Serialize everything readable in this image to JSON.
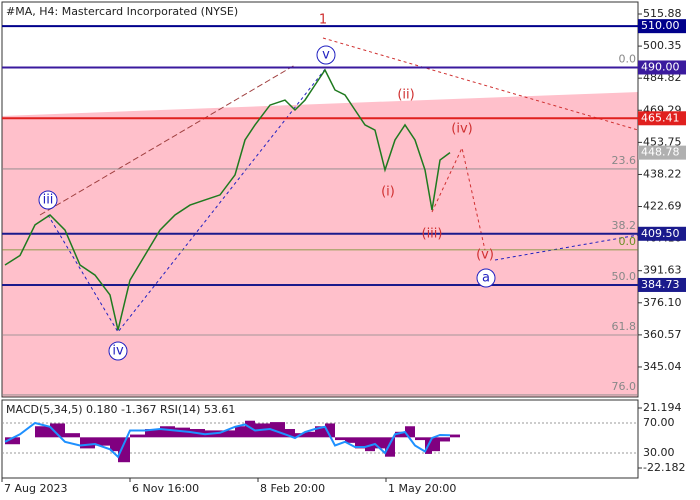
{
  "chart_data": [
    {
      "type": "line",
      "title": "#MA, H4:  Mastercard Incorporated (NYSE)",
      "xlim": [
        0,
        318
      ],
      "xticks": [
        {
          "value": 0,
          "label": "7 Aug 2023"
        },
        {
          "value": 64,
          "label": "6 Nov 16:00"
        },
        {
          "value": 128,
          "label": "8 Feb 20:00"
        },
        {
          "value": 192,
          "label": "1 May 20:00"
        }
      ],
      "x": [
        1.5,
        9,
        16.5,
        24,
        31.5,
        39,
        46.5,
        54,
        58,
        64,
        71.5,
        79,
        86.5,
        94,
        101.5,
        109,
        116.5,
        121.5,
        126.5,
        134,
        141.5,
        146.5,
        151.5,
        156.5,
        161.5,
        166.5,
        171.5,
        176.5,
        181.5,
        186.5,
        191.5,
        196.5,
        201.5,
        206.5,
        211.5,
        215,
        219,
        224
      ],
      "values": [
        394.4,
        399,
        413.8,
        418.6,
        411.3,
        394.4,
        389.5,
        379.9,
        362.9,
        387.1,
        399.2,
        411.3,
        418.6,
        423.4,
        425.9,
        428.3,
        438,
        454.9,
        462.2,
        471.8,
        474.2,
        469.4,
        474.2,
        481.5,
        488.8,
        479.1,
        476.7,
        469.4,
        462.2,
        459.7,
        440.4,
        454.9,
        462.2,
        454.9,
        440.4,
        421,
        445.2,
        448.78
      ],
      "color": "#1f7a1f",
      "ylim": [
        330.5,
        522.66
      ],
      "yticks": [
        515.88,
        500.35,
        484.82,
        469.29,
        453.75,
        438.22,
        422.69,
        407.16,
        391.63,
        {
          "value": 376.1,
          "label": "376.10"
        },
        360.57,
        345.04
      ],
      "levels": [
        {
          "value": 510,
          "label": "510.00",
          "color": "#00008b"
        },
        {
          "value": 490,
          "label": "490.00",
          "color": "#3a1a9e"
        },
        {
          "value": 465.41,
          "label": "465.41",
          "color": "#e0201e"
        },
        {
          "value": 409.5,
          "label": "409.50",
          "color": "#1a1a8c"
        },
        {
          "value": 384.73,
          "label": "384.73",
          "color": "#1a1a8c"
        }
      ],
      "current_price": {
        "value": 448.78,
        "label": "448.78"
      },
      "fib_levels": [
        {
          "value": 490,
          "label": "0.0",
          "color": "#888888"
        },
        {
          "value": 440.9,
          "label": "23.6",
          "color": "#888888"
        },
        {
          "value": 409.5,
          "label": "38.2",
          "color": "#888888"
        },
        {
          "value": 401.7,
          "label": "0.0",
          "color": "#6b8e23"
        },
        {
          "value": 384.73,
          "label": "50.0",
          "color": "#888888"
        },
        {
          "value": 360.5,
          "label": "61.8",
          "color": "#888888"
        },
        {
          "value": 331.5,
          "label": "76.0",
          "color": "#888888"
        }
      ],
      "wave_labels": [
        {
          "text": "1",
          "color": "#d03030",
          "circled": false
        },
        {
          "text": "v",
          "color": "#2020c0",
          "circled": true
        },
        {
          "text": "iii",
          "color": "#2020c0",
          "circled": true
        },
        {
          "text": "iv",
          "color": "#2020c0",
          "circled": true
        },
        {
          "text": "(ii)",
          "color": "#d03030",
          "circled": false
        },
        {
          "text": "(iv)",
          "color": "#d03030",
          "circled": false
        },
        {
          "text": "(i)",
          "color": "#d03030",
          "circled": false
        },
        {
          "text": "(iii)",
          "color": "#d03030",
          "circled": false
        },
        {
          "text": "(v)",
          "color": "#d03030",
          "circled": false
        },
        {
          "text": "a",
          "color": "#2020c0",
          "circled": true
        }
      ]
    },
    {
      "type": "indicator",
      "title": "MACD(5,34,5) 0.180 -1.367 RSI(14) 53.61",
      "xlim": [
        0,
        318
      ],
      "x": [
        1.5,
        9,
        16.5,
        24,
        31.5,
        39,
        46.5,
        54,
        58,
        64,
        71.5,
        79,
        86.5,
        94,
        101.5,
        109,
        116.5,
        121.5,
        126.5,
        134,
        141.5,
        146.5,
        151.5,
        156.5,
        161.5,
        166.5,
        171.5,
        176.5,
        181.5,
        186.5,
        191.5,
        196.5,
        201.5,
        206.5,
        211.5,
        215,
        219,
        224
      ],
      "ylim": [
        -29.41,
        26.98
      ],
      "yticks": [
        21.194,
        -22.182
      ],
      "y2lim": [
        -3.33,
        100.67
      ],
      "y2ticks": [
        {
          "value": 70,
          "label": "70.00"
        },
        {
          "value": 30,
          "label": "30.00"
        }
      ],
      "series": [
        {
          "type": "bar",
          "color": "#800080",
          "values": [
            -5,
            0,
            8,
            10,
            3,
            -8,
            -6,
            -10,
            -18,
            2,
            6,
            8,
            7,
            6,
            5,
            5,
            8,
            12,
            10,
            11,
            6,
            3,
            4,
            8,
            10,
            -2,
            -4,
            -8,
            -10,
            -8,
            -14,
            4,
            8,
            -2,
            -12,
            -10,
            -3,
            2
          ]
        },
        {
          "type": "line",
          "axis": "y2",
          "color": "#1e90ff",
          "values": [
            45,
            55,
            70,
            65,
            45,
            40,
            42,
            35,
            25,
            60,
            60,
            62,
            60,
            58,
            55,
            57,
            65,
            68,
            60,
            62,
            55,
            50,
            58,
            62,
            65,
            40,
            45,
            38,
            38,
            42,
            30,
            55,
            58,
            40,
            32,
            50,
            54,
            53.61
          ]
        }
      ]
    }
  ]
}
